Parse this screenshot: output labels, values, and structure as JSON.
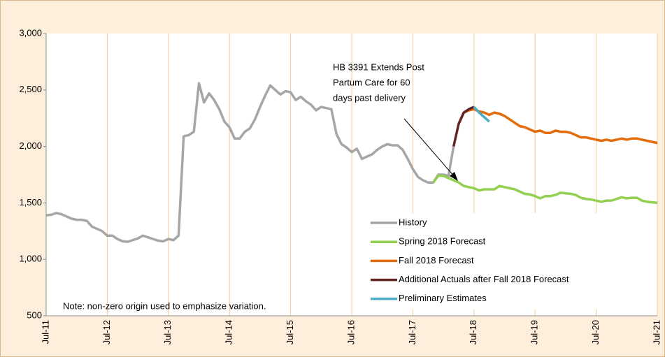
{
  "chart_data": {
    "type": "line",
    "annotation": [
      "HB 3391 Extends Post",
      "Partum Care for 60",
      "days past delivery"
    ],
    "note": "Note: non-zero origin used to emphasize variation.",
    "categories": [
      "Jul-11",
      null,
      null,
      null,
      null,
      null,
      null,
      null,
      null,
      null,
      null,
      null,
      "Jul-12",
      null,
      null,
      null,
      null,
      null,
      null,
      null,
      null,
      null,
      null,
      null,
      "Jul-13",
      null,
      null,
      null,
      null,
      null,
      null,
      null,
      null,
      null,
      null,
      null,
      "Jul-14",
      null,
      null,
      null,
      null,
      null,
      null,
      null,
      null,
      null,
      null,
      null,
      "Jul-15",
      null,
      null,
      null,
      null,
      null,
      null,
      null,
      null,
      null,
      null,
      null,
      "Jul-16",
      null,
      null,
      null,
      null,
      null,
      null,
      null,
      null,
      null,
      null,
      null,
      "Jul-17",
      null,
      null,
      null,
      null,
      null,
      null,
      null,
      null,
      null,
      null,
      null,
      "Jul-18",
      null,
      null,
      null,
      null,
      null,
      null,
      null,
      null,
      null,
      null,
      null,
      "Jul-19",
      null,
      null,
      null,
      null,
      null,
      null,
      null,
      null,
      null,
      null,
      null,
      "Jul-20",
      null,
      null,
      null,
      null,
      null,
      null,
      null,
      null,
      null,
      null,
      null,
      "Jul-21"
    ],
    "series": [
      {
        "name": "History",
        "color": "#a6a6a6",
        "values": [
          1390,
          1395,
          1410,
          1400,
          1380,
          1360,
          1350,
          1350,
          1340,
          1290,
          1270,
          1250,
          1210,
          1210,
          1180,
          1160,
          1155,
          1170,
          1185,
          1210,
          1195,
          1180,
          1165,
          1160,
          1180,
          1170,
          1210,
          2090,
          2100,
          2130,
          2560,
          2390,
          2470,
          2410,
          2330,
          2220,
          2170,
          2070,
          2070,
          2130,
          2160,
          2240,
          2350,
          2450,
          2540,
          2500,
          2460,
          2490,
          2480,
          2410,
          2440,
          2400,
          2370,
          2320,
          2350,
          2340,
          2330,
          2110,
          2020,
          1990,
          1950,
          1980,
          1890,
          1910,
          1930,
          1970,
          2000,
          2020,
          2010,
          2010,
          1970,
          1890,
          1800,
          1730,
          1700,
          1680,
          1680,
          1750,
          1750,
          1740,
          2000,
          null,
          null,
          null,
          null,
          null,
          null,
          null,
          null,
          null,
          null,
          null,
          null,
          null,
          null,
          null,
          null,
          null,
          null,
          null,
          null,
          null,
          null,
          null,
          null,
          null,
          null,
          null,
          null,
          null,
          null,
          null,
          null,
          null,
          null,
          null,
          null,
          null,
          null,
          null,
          null
        ]
      },
      {
        "name": "Spring 2018 Forecast",
        "color": "#92d050",
        "values": [
          null,
          null,
          null,
          null,
          null,
          null,
          null,
          null,
          null,
          null,
          null,
          null,
          null,
          null,
          null,
          null,
          null,
          null,
          null,
          null,
          null,
          null,
          null,
          null,
          null,
          null,
          null,
          null,
          null,
          null,
          null,
          null,
          null,
          null,
          null,
          null,
          null,
          null,
          null,
          null,
          null,
          null,
          null,
          null,
          null,
          null,
          null,
          null,
          null,
          null,
          null,
          null,
          null,
          null,
          null,
          null,
          null,
          null,
          null,
          null,
          null,
          null,
          null,
          null,
          null,
          null,
          null,
          null,
          null,
          null,
          null,
          null,
          null,
          null,
          null,
          null,
          1680,
          1740,
          1740,
          1720,
          1700,
          1680,
          1650,
          1640,
          1630,
          1610,
          1620,
          1620,
          1620,
          1650,
          1640,
          1630,
          1620,
          1600,
          1580,
          1575,
          1560,
          1540,
          1560,
          1560,
          1570,
          1590,
          1585,
          1580,
          1570,
          1545,
          1535,
          1530,
          1520,
          1510,
          1520,
          1520,
          1535,
          1550,
          1540,
          1545,
          1545,
          1520,
          1510,
          1505,
          1500
        ]
      },
      {
        "name": "Fall 2018 Forecast",
        "color": "#e46c0a",
        "values": [
          null,
          null,
          null,
          null,
          null,
          null,
          null,
          null,
          null,
          null,
          null,
          null,
          null,
          null,
          null,
          null,
          null,
          null,
          null,
          null,
          null,
          null,
          null,
          null,
          null,
          null,
          null,
          null,
          null,
          null,
          null,
          null,
          null,
          null,
          null,
          null,
          null,
          null,
          null,
          null,
          null,
          null,
          null,
          null,
          null,
          null,
          null,
          null,
          null,
          null,
          null,
          null,
          null,
          null,
          null,
          null,
          null,
          null,
          null,
          null,
          null,
          null,
          null,
          null,
          null,
          null,
          null,
          null,
          null,
          null,
          null,
          null,
          null,
          null,
          null,
          null,
          null,
          null,
          null,
          null,
          null,
          2200,
          2300,
          2320,
          2330,
          2310,
          2300,
          2280,
          2300,
          2290,
          2270,
          2240,
          2210,
          2180,
          2170,
          2150,
          2130,
          2140,
          2120,
          2120,
          2140,
          2130,
          2130,
          2120,
          2100,
          2080,
          2080,
          2070,
          2060,
          2050,
          2060,
          2050,
          2060,
          2070,
          2060,
          2070,
          2070,
          2060,
          2050,
          2040,
          2030
        ]
      },
      {
        "name": "Additional Actuals after Fall 2018 Forecast",
        "color": "#632523",
        "values": [
          null,
          null,
          null,
          null,
          null,
          null,
          null,
          null,
          null,
          null,
          null,
          null,
          null,
          null,
          null,
          null,
          null,
          null,
          null,
          null,
          null,
          null,
          null,
          null,
          null,
          null,
          null,
          null,
          null,
          null,
          null,
          null,
          null,
          null,
          null,
          null,
          null,
          null,
          null,
          null,
          null,
          null,
          null,
          null,
          null,
          null,
          null,
          null,
          null,
          null,
          null,
          null,
          null,
          null,
          null,
          null,
          null,
          null,
          null,
          null,
          null,
          null,
          null,
          null,
          null,
          null,
          null,
          null,
          null,
          null,
          null,
          null,
          null,
          null,
          null,
          null,
          null,
          null,
          null,
          null,
          2000,
          2200,
          2300,
          2330,
          2350,
          null,
          null,
          null,
          null,
          null,
          null,
          null,
          null,
          null,
          null,
          null,
          null,
          null,
          null,
          null,
          null,
          null,
          null,
          null,
          null,
          null,
          null,
          null,
          null,
          null,
          null,
          null,
          null,
          null,
          null,
          null,
          null,
          null,
          null,
          null,
          null
        ]
      },
      {
        "name": "Preliminary Estimates",
        "color": "#4bacc6",
        "values": [
          null,
          null,
          null,
          null,
          null,
          null,
          null,
          null,
          null,
          null,
          null,
          null,
          null,
          null,
          null,
          null,
          null,
          null,
          null,
          null,
          null,
          null,
          null,
          null,
          null,
          null,
          null,
          null,
          null,
          null,
          null,
          null,
          null,
          null,
          null,
          null,
          null,
          null,
          null,
          null,
          null,
          null,
          null,
          null,
          null,
          null,
          null,
          null,
          null,
          null,
          null,
          null,
          null,
          null,
          null,
          null,
          null,
          null,
          null,
          null,
          null,
          null,
          null,
          null,
          null,
          null,
          null,
          null,
          null,
          null,
          null,
          null,
          null,
          null,
          null,
          null,
          null,
          null,
          null,
          null,
          null,
          null,
          null,
          null,
          2350,
          2300,
          2260,
          2220,
          null,
          null,
          null,
          null,
          null,
          null,
          null,
          null,
          null,
          null,
          null,
          null,
          null,
          null,
          null,
          null,
          null,
          null,
          null,
          null,
          null,
          null,
          null,
          null,
          null,
          null,
          null,
          null,
          null,
          null,
          null,
          null,
          null
        ]
      }
    ],
    "ylim": [
      500,
      3000
    ],
    "yticks": [
      500,
      {
        "value": 1000,
        "label": "1,000"
      },
      {
        "value": 1500,
        "label": "1,500"
      },
      {
        "value": 2000,
        "label": "2,000"
      },
      {
        "value": 2500,
        "label": "2,500"
      },
      {
        "value": 3000,
        "label": "3,000"
      }
    ],
    "xgrid": true,
    "grid_color": "#f6c98e",
    "legend": "lower right"
  }
}
